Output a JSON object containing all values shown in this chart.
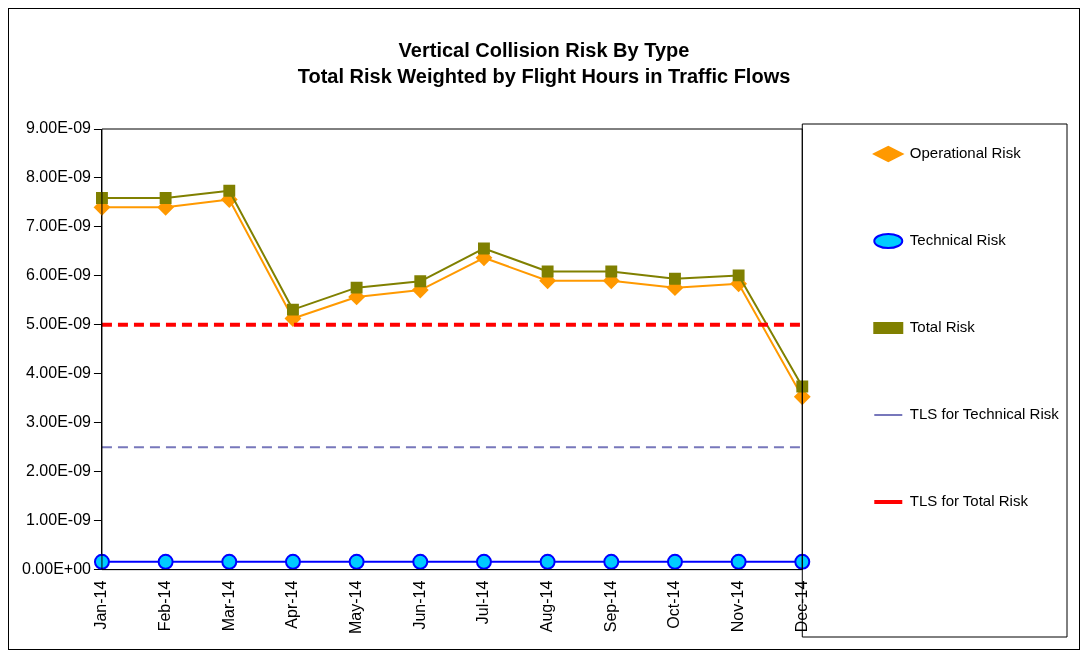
{
  "chart_data": {
    "type": "line",
    "title": "Vertical Collision Risk By Type",
    "subtitle": "Total Risk Weighted by Flight Hours in Traffic Flows",
    "categories": [
      "Jan-14",
      "Feb-14",
      "Mar-14",
      "Apr-14",
      "May-14",
      "Jun-14",
      "Jul-14",
      "Aug-14",
      "Sep-14",
      "Oct-14",
      "Nov-14",
      "Dec-14"
    ],
    "series": [
      {
        "name": "Operational Risk",
        "color": "#ff9900",
        "marker": "diamond",
        "line_style": "solid",
        "values": [
          7.4e-09,
          7.4e-09,
          7.56e-09,
          5.13e-09,
          5.57e-09,
          5.71e-09,
          6.37e-09,
          5.9e-09,
          5.9e-09,
          5.76e-09,
          5.84e-09,
          3.53e-09
        ]
      },
      {
        "name": "Technical Risk",
        "color": "#0000ff",
        "marker": "circle",
        "line_style": "solid",
        "values": [
          1.6e-10,
          1.6e-10,
          1.6e-10,
          1.6e-10,
          1.6e-10,
          1.6e-10,
          1.6e-10,
          1.6e-10,
          1.6e-10,
          1.6e-10,
          1.6e-10,
          1.6e-10
        ]
      },
      {
        "name": "Total Risk",
        "color": "#808000",
        "marker": "square",
        "line_style": "solid",
        "values": [
          7.59e-09,
          7.59e-09,
          7.74e-09,
          5.31e-09,
          5.76e-09,
          5.89e-09,
          6.56e-09,
          6.09e-09,
          6.09e-09,
          5.94e-09,
          6.01e-09,
          3.74e-09
        ]
      },
      {
        "name": "TLS for Technical Risk",
        "color": "#7777bb",
        "marker": "none",
        "line_style": "dashed",
        "values": [
          2.5e-09,
          2.5e-09,
          2.5e-09,
          2.5e-09,
          2.5e-09,
          2.5e-09,
          2.5e-09,
          2.5e-09,
          2.5e-09,
          2.5e-09,
          2.5e-09,
          2.5e-09
        ]
      },
      {
        "name": "TLS for Total Risk",
        "color": "#ff0000",
        "marker": "none",
        "line_style": "dashed",
        "values": [
          5e-09,
          5e-09,
          5e-09,
          5e-09,
          5e-09,
          5e-09,
          5e-09,
          5e-09,
          5e-09,
          5e-09,
          5e-09,
          5e-09
        ]
      }
    ],
    "ylim": [
      0,
      9e-09
    ],
    "yticks": [
      {
        "value": 0,
        "label": "0.00E+00"
      },
      {
        "value": 1e-09,
        "label": "1.00E-09"
      },
      {
        "value": 2e-09,
        "label": "2.00E-09"
      },
      {
        "value": 3e-09,
        "label": "3.00E-09"
      },
      {
        "value": 4e-09,
        "label": "4.00E-09"
      },
      {
        "value": 5e-09,
        "label": "5.00E-09"
      },
      {
        "value": 6e-09,
        "label": "6.00E-09"
      },
      {
        "value": 7e-09,
        "label": "7.00E-09"
      },
      {
        "value": 8e-09,
        "label": "8.00E-09"
      },
      {
        "value": 9e-09,
        "label": "9.00E-09"
      }
    ],
    "grid": false,
    "legend": "right"
  }
}
